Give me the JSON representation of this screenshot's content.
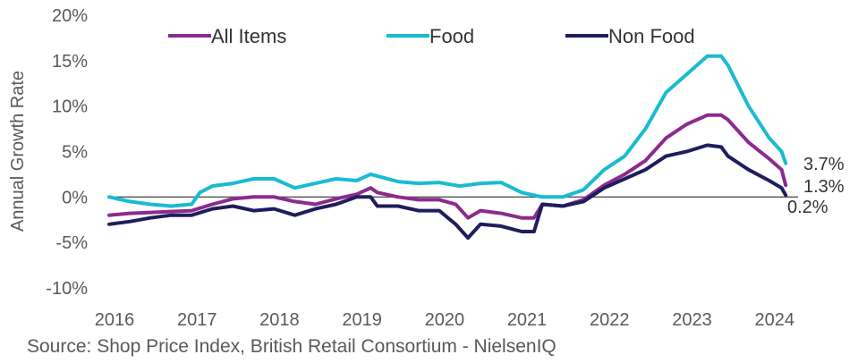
{
  "chart_data": {
    "type": "line",
    "title": "",
    "ylabel": "Annual Growth Rate",
    "xlabel": "",
    "ylim": [
      -10,
      20
    ],
    "xlim": [
      2016.0,
      2024.35
    ],
    "yticks": [
      -10,
      -5,
      0,
      5,
      10,
      15,
      20
    ],
    "ytick_labels": [
      "-10%",
      "-5%",
      "0%",
      "5%",
      "10%",
      "15%",
      "20%"
    ],
    "xticks": [
      2016,
      2017,
      2018,
      2019,
      2020,
      2021,
      2022,
      2023,
      2024
    ],
    "xtick_labels": [
      "2016",
      "2017",
      "2018",
      "2019",
      "2020",
      "2021",
      "2022",
      "2023",
      "2024"
    ],
    "legend_position": "top",
    "series": [
      {
        "name": "All Items",
        "color": "#8b2a8f",
        "end_label": "1.3%",
        "x": [
          2016.0,
          2016.25,
          2016.5,
          2016.75,
          2017.0,
          2017.25,
          2017.5,
          2017.75,
          2018.0,
          2018.25,
          2018.5,
          2018.75,
          2019.0,
          2019.17,
          2019.25,
          2019.5,
          2019.75,
          2020.0,
          2020.2,
          2020.35,
          2020.5,
          2020.75,
          2021.0,
          2021.15,
          2021.25,
          2021.5,
          2021.75,
          2022.0,
          2022.25,
          2022.5,
          2022.75,
          2023.0,
          2023.25,
          2023.42,
          2023.5,
          2023.75,
          2024.0,
          2024.15,
          2024.2
        ],
        "y": [
          -2.0,
          -1.8,
          -1.7,
          -1.6,
          -1.5,
          -0.8,
          -0.2,
          0.0,
          0.0,
          -0.5,
          -0.8,
          -0.2,
          0.3,
          1.0,
          0.5,
          0.0,
          -0.3,
          -0.3,
          -0.8,
          -2.3,
          -1.5,
          -1.8,
          -2.3,
          -2.3,
          -0.8,
          -1.0,
          -0.3,
          1.3,
          2.5,
          4.0,
          6.5,
          8.0,
          9.0,
          9.0,
          8.5,
          6.0,
          4.2,
          3.0,
          1.3
        ]
      },
      {
        "name": "Food",
        "color": "#19bbd2",
        "end_label": "3.7%",
        "x": [
          2016.0,
          2016.25,
          2016.5,
          2016.75,
          2017.0,
          2017.1,
          2017.25,
          2017.5,
          2017.75,
          2018.0,
          2018.25,
          2018.5,
          2018.75,
          2019.0,
          2019.17,
          2019.25,
          2019.5,
          2019.75,
          2020.0,
          2020.25,
          2020.5,
          2020.75,
          2021.0,
          2021.25,
          2021.5,
          2021.75,
          2022.0,
          2022.25,
          2022.5,
          2022.75,
          2023.0,
          2023.25,
          2023.42,
          2023.5,
          2023.75,
          2024.0,
          2024.15,
          2024.2
        ],
        "y": [
          0.0,
          -0.5,
          -0.8,
          -1.0,
          -0.8,
          0.5,
          1.2,
          1.5,
          2.0,
          2.0,
          1.0,
          1.5,
          2.0,
          1.8,
          2.5,
          2.3,
          1.7,
          1.5,
          1.6,
          1.2,
          1.5,
          1.6,
          0.5,
          0.0,
          0.0,
          0.8,
          3.0,
          4.5,
          7.5,
          11.5,
          13.5,
          15.5,
          15.5,
          14.5,
          10.0,
          6.5,
          5.0,
          3.7
        ]
      },
      {
        "name": "Non Food",
        "color": "#1f1d5c",
        "end_label": "0.2%",
        "x": [
          2016.0,
          2016.25,
          2016.5,
          2016.75,
          2017.0,
          2017.25,
          2017.5,
          2017.75,
          2018.0,
          2018.25,
          2018.5,
          2018.75,
          2019.0,
          2019.17,
          2019.25,
          2019.5,
          2019.75,
          2020.0,
          2020.2,
          2020.35,
          2020.5,
          2020.75,
          2021.0,
          2021.15,
          2021.25,
          2021.5,
          2021.75,
          2022.0,
          2022.25,
          2022.5,
          2022.75,
          2023.0,
          2023.25,
          2023.42,
          2023.5,
          2023.75,
          2024.0,
          2024.15,
          2024.2
        ],
        "y": [
          -3.0,
          -2.7,
          -2.3,
          -2.0,
          -2.0,
          -1.3,
          -1.0,
          -1.5,
          -1.3,
          -2.0,
          -1.3,
          -0.8,
          0.0,
          0.0,
          -1.0,
          -1.0,
          -1.5,
          -1.5,
          -3.0,
          -4.5,
          -3.0,
          -3.2,
          -3.8,
          -3.8,
          -0.8,
          -1.0,
          -0.5,
          1.0,
          2.0,
          3.0,
          4.5,
          5.0,
          5.7,
          5.5,
          4.5,
          3.0,
          1.8,
          1.0,
          0.2
        ]
      }
    ]
  },
  "source": "Source: Shop Price Index, British Retail Consortium - NielsenIQ"
}
